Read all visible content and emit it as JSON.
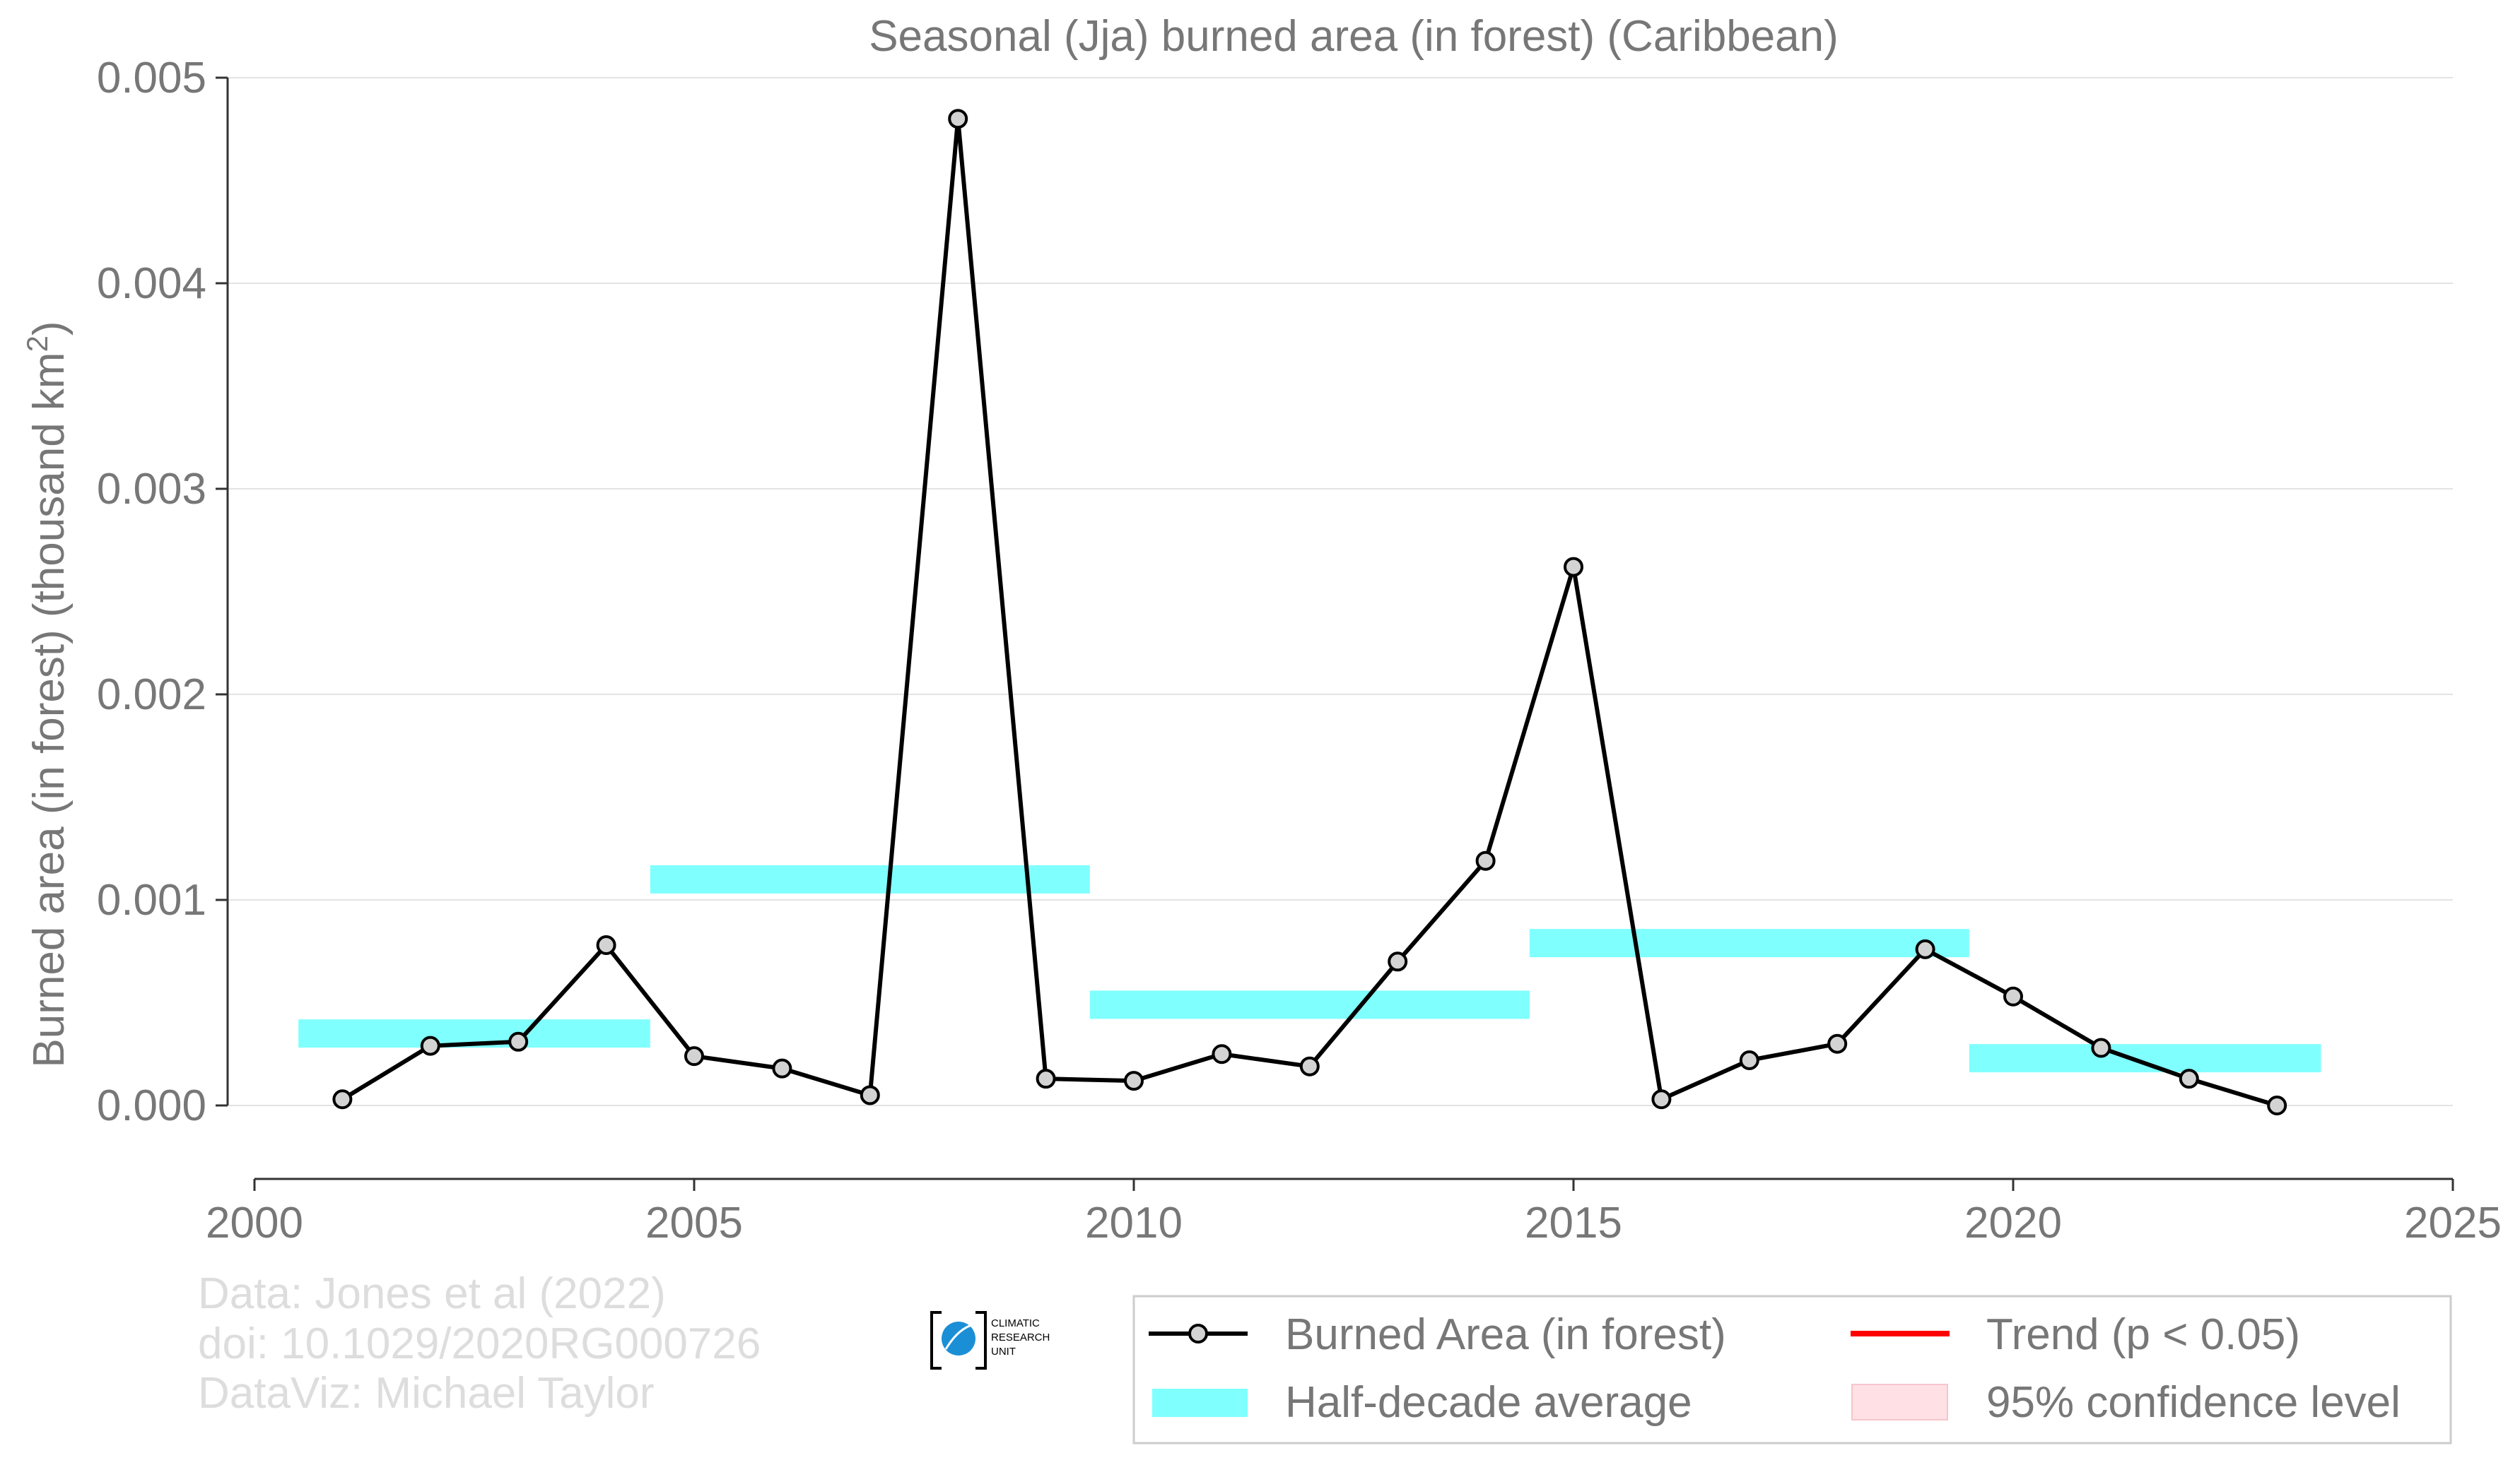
{
  "chart_data": {
    "type": "line",
    "title": "Seasonal (Jja) burned area (in forest) (Caribbean)",
    "xlabel": "",
    "ylabel": "Burned area (in forest) (thousand km²)",
    "xlim": [
      2000,
      2025
    ],
    "ylim": [
      0,
      0.005
    ],
    "x_ticks": [
      "2000",
      "2005",
      "2010",
      "2015",
      "2020",
      "2025"
    ],
    "y_ticks": [
      "0.000",
      "0.001",
      "0.002",
      "0.003",
      "0.004",
      "0.005"
    ],
    "grid": "horizontal",
    "legend_placement": "bottom-right",
    "series": [
      {
        "name": "Burned Area (in forest)",
        "style": "line-with-markers",
        "color": "#000000",
        "marker_fill": "#d3d3d3",
        "x": [
          2001,
          2002,
          2003,
          2004,
          2005,
          2006,
          2007,
          2008,
          2009,
          2010,
          2011,
          2012,
          2013,
          2014,
          2015,
          2016,
          2017,
          2018,
          2019,
          2020,
          2021,
          2022,
          2023
        ],
        "y": [
          3e-05,
          0.00029,
          0.00031,
          0.00078,
          0.00024,
          0.00018,
          5e-05,
          0.0048,
          0.00013,
          0.00012,
          0.00025,
          0.00019,
          0.0007,
          0.00119,
          0.00262,
          3e-05,
          0.00022,
          0.0003,
          0.00076,
          0.00053,
          0.00028,
          0.00013,
          0.0
        ]
      },
      {
        "name": "Half-decade average",
        "style": "band",
        "color": "#80ffff",
        "segments": [
          {
            "x_start": 2000.5,
            "x_end": 2004.5,
            "value": 0.00035
          },
          {
            "x_start": 2004.5,
            "x_end": 2009.5,
            "value": 0.0011
          },
          {
            "x_start": 2009.5,
            "x_end": 2014.5,
            "value": 0.00049
          },
          {
            "x_start": 2014.5,
            "x_end": 2019.5,
            "value": 0.00079
          },
          {
            "x_start": 2019.5,
            "x_end": 2023.5,
            "value": 0.00023
          }
        ]
      }
    ],
    "legend": [
      {
        "label": "Burned Area (in forest)",
        "symbol": "line-marker",
        "color": "#000000"
      },
      {
        "label": "Trend (p < 0.05)",
        "symbol": "line",
        "color": "#ff0000"
      },
      {
        "label": "Half-decade average",
        "symbol": "band",
        "color": "#80ffff"
      },
      {
        "label": "95% confidence level",
        "symbol": "band",
        "color": "#ffe0e4"
      }
    ]
  },
  "credits": {
    "line1": "Data: Jones et al (2022)",
    "line2": "doi: 10.1029/2020RG000726",
    "line3": "DataViz: Michael Taylor"
  },
  "logo": {
    "line1": "CLIMATIC",
    "line2": "RESEARCH",
    "line3": "UNIT"
  }
}
